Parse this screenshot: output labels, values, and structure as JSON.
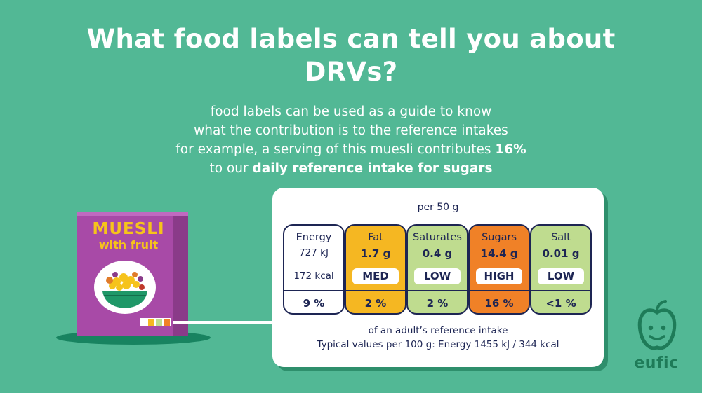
{
  "title": "What food labels can tell you about DRVs?",
  "subtitle": {
    "line1": "food labels can be used as a guide to know",
    "line2": "what the contribution is to the reference intakes",
    "line3_pre": "for example, a serving of this muesli contributes ",
    "line3_bold": "16%",
    "line4_pre": "to our ",
    "line4_bold": "daily reference intake for sugars"
  },
  "product": {
    "name": "MUESLI",
    "variant": "with fruit"
  },
  "label": {
    "serving": "per 50 g",
    "columns": [
      {
        "name": "Energy",
        "amount": "727 kJ",
        "kcal": "172 kcal",
        "level": "",
        "percent": "9 %",
        "color": "#ffffff"
      },
      {
        "name": "Fat",
        "amount": "1.7 g",
        "kcal": "",
        "level": "MED",
        "percent": "2 %",
        "color": "#f5b722"
      },
      {
        "name": "Saturates",
        "amount": "0.4 g",
        "kcal": "",
        "level": "LOW",
        "percent": "2 %",
        "color": "#bfdc8f"
      },
      {
        "name": "Sugars",
        "amount": "14.4 g",
        "kcal": "",
        "level": "HIGH",
        "percent": "16 %",
        "color": "#f08127"
      },
      {
        "name": "Salt",
        "amount": "0.01 g",
        "kcal": "",
        "level": "LOW",
        "percent": "<1 %",
        "color": "#bfdc8f"
      }
    ],
    "footer1": "of an adult’s reference intake",
    "footer2": "Typical values per 100 g: Energy 1455 kJ / 344 kcal"
  },
  "logo": {
    "text": "eufic"
  },
  "colors": {
    "background": "#52b895",
    "navy": "#1d2553",
    "box": "#a84aa7",
    "box_title": "#f6c31b",
    "logo": "#1e7b58"
  }
}
